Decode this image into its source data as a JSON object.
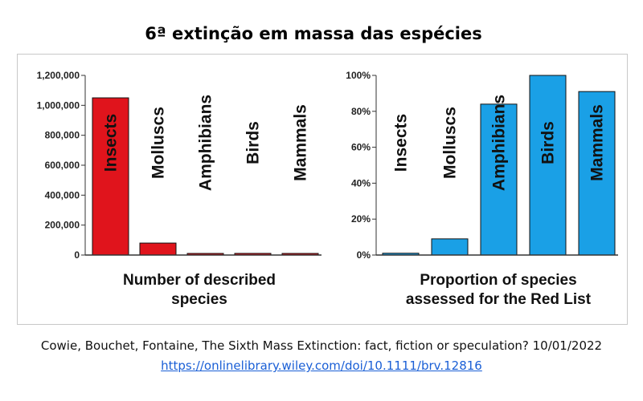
{
  "title": "6ª extinção em massa das espécies",
  "citation": {
    "text": "Cowie, Bouchet, Fontaine, The Sixth Mass Extinction: fact, fiction or speculation? 10/01/2022",
    "link": "https://onlinelibrary.wiley.com/doi/10.1111/brv.12816"
  },
  "colors": {
    "left_bars": "#e0141c",
    "right_bars": "#1aa0e6",
    "bar_stroke": "#111111"
  },
  "chart_data": [
    {
      "type": "bar",
      "categories": [
        "Insects",
        "Molluscs",
        "Amphibians",
        "Birds",
        "Mammals"
      ],
      "values": [
        1050000,
        80000,
        7000,
        11000,
        6000
      ],
      "xlabel_lines": [
        "Number of described",
        "species"
      ],
      "ylim": [
        0,
        1200000
      ],
      "yticks": [
        0,
        200000,
        400000,
        600000,
        800000,
        1000000,
        1200000
      ],
      "ytick_labels": [
        "0",
        "200,000",
        "400,000",
        "600,000",
        "800,000",
        "1,000,000",
        "1,200,000"
      ]
    },
    {
      "type": "bar",
      "categories": [
        "Insects",
        "Molluscs",
        "Amphibians",
        "Birds",
        "Mammals"
      ],
      "values": [
        1,
        9,
        84,
        100,
        91
      ],
      "xlabel_lines": [
        "Proportion of species",
        "assessed for the Red List"
      ],
      "ylim": [
        0,
        100
      ],
      "yticks": [
        0,
        20,
        40,
        60,
        80,
        100
      ],
      "ytick_labels": [
        "0%",
        "20%",
        "40%",
        "60%",
        "80%",
        "100%"
      ]
    }
  ]
}
